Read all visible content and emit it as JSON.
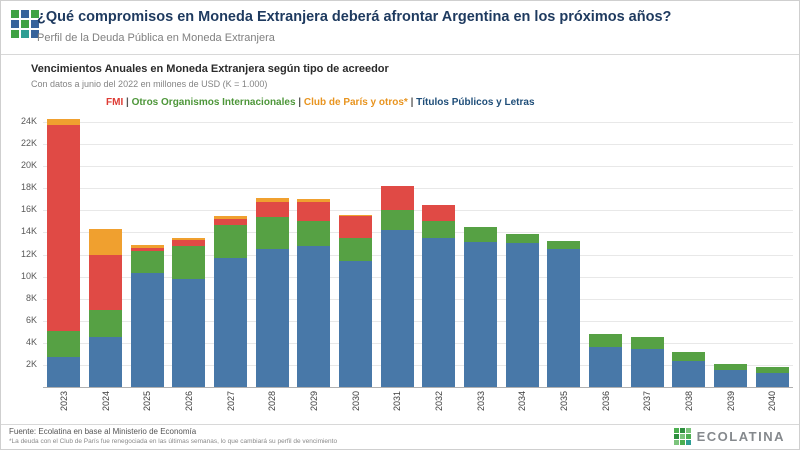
{
  "header": {
    "title": "¿Qué compromisos en Moneda Extranjera deberá afrontar Argentina en los próximos años?",
    "subtitle": "Perfil de la Deuda Pública en Moneda Extranjera"
  },
  "chart": {
    "title": "Vencimientos Anuales en Moneda Extranjera según tipo de acreedor",
    "subtitle": "Con datos a junio del 2022 en millones de USD (K = 1.000)"
  },
  "chart_data": {
    "type": "bar",
    "stacked": true,
    "title": "Vencimientos Anuales en Moneda Extranjera según tipo de acreedor",
    "unit": "miles de millones de USD (K = 1.000)",
    "categories": [
      "2023",
      "2024",
      "2025",
      "2026",
      "2027",
      "2028",
      "2029",
      "2030",
      "2031",
      "2032",
      "2033",
      "2034",
      "2035",
      "2036",
      "2037",
      "2038",
      "2039",
      "2040"
    ],
    "series": [
      {
        "name": "FMI",
        "color": "#E04A45",
        "legend_color": "#DE3B34",
        "values": [
          18.6,
          5.0,
          0.3,
          0.5,
          0.5,
          1.4,
          1.8,
          2.0,
          2.2,
          1.5,
          0,
          0,
          0,
          0,
          0,
          0,
          0,
          0
        ]
      },
      {
        "name": "Otros Organismos Internacionales",
        "color": "#56A144",
        "legend_color": "#4D9639",
        "values": [
          2.4,
          2.5,
          2.0,
          3.0,
          3.0,
          2.9,
          2.2,
          2.1,
          1.8,
          1.5,
          1.4,
          0.9,
          0.7,
          1.2,
          1.1,
          0.8,
          0.6,
          0.5
        ]
      },
      {
        "name": "Club de París y otros*",
        "color": "#F0A02F",
        "legend_color": "#E8941F",
        "values": [
          0.6,
          2.3,
          0.3,
          0.2,
          0.3,
          0.3,
          0.2,
          0.1,
          0,
          0,
          0,
          0,
          0,
          0,
          0,
          0,
          0,
          0
        ]
      },
      {
        "name": "Títulos Públicos y Letras",
        "color": "#4878A8",
        "legend_color": "#1F4E79",
        "values": [
          2.7,
          4.5,
          10.3,
          9.8,
          11.7,
          12.5,
          12.8,
          11.4,
          14.2,
          13.5,
          13.1,
          13.0,
          12.5,
          3.6,
          3.4,
          2.4,
          1.5,
          1.3
        ]
      }
    ],
    "stack_order_bottom_to_top": [
      "Títulos Públicos y Letras",
      "Otros Organismos Internacionales",
      "FMI",
      "Club de París y otros*"
    ],
    "ylim": [
      0,
      25
    ],
    "ytick_step": 2,
    "ytick_max": 24,
    "ytick_suffix": "K",
    "xlabel": "",
    "ylabel": "",
    "grid": true,
    "legend_position": "top",
    "legend_separator": " | "
  },
  "footer": {
    "source": "Fuente: Ecolatina en base al Ministerio de Economía",
    "note": "*La deuda con el Club de París fue renegociada en las últimas semanas, lo que cambiará su perfil de vencimiento",
    "brand": "ECOLATINA"
  },
  "colors": {
    "title_navy": "#1E3A5F",
    "brand_green": "#3FA244",
    "brand_blue": "#37639B"
  }
}
